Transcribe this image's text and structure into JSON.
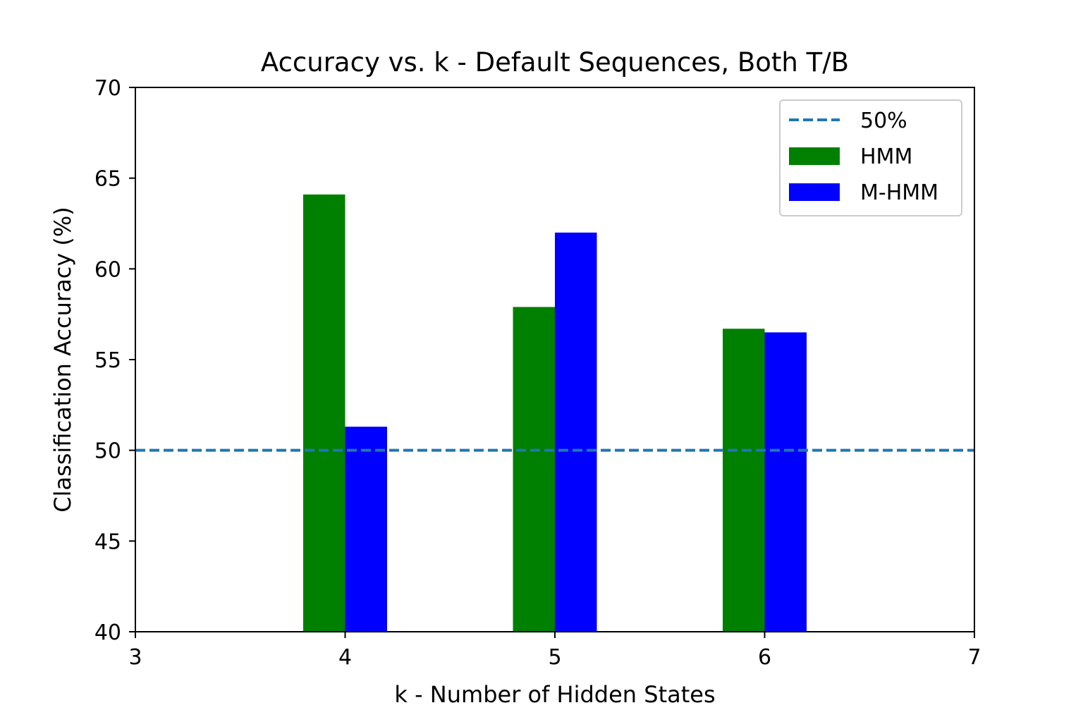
{
  "chart_data": {
    "type": "bar",
    "title": "Accuracy vs. k - Default Sequences, Both T/B",
    "xlabel": "k - Number of Hidden States",
    "ylabel": "Classification Accuracy (%)",
    "xlim": [
      3,
      7
    ],
    "ylim": [
      40,
      70
    ],
    "xticks": [
      "3",
      "4",
      "5",
      "6",
      "7"
    ],
    "yticks": [
      "40",
      "45",
      "50",
      "55",
      "60",
      "65",
      "70"
    ],
    "categories": [
      4,
      5,
      6
    ],
    "bar_width": 0.2,
    "series": [
      {
        "name": "HMM",
        "color": "#008000",
        "values": [
          64.1,
          57.9,
          56.7
        ]
      },
      {
        "name": "M-HMM",
        "color": "#0000ff",
        "values": [
          51.3,
          62.0,
          56.5
        ]
      }
    ],
    "reference_line": {
      "name": "50%",
      "value": 50,
      "color": "#1f77b4",
      "style": "dashed"
    },
    "grid": false,
    "legend_position": "top-right"
  }
}
